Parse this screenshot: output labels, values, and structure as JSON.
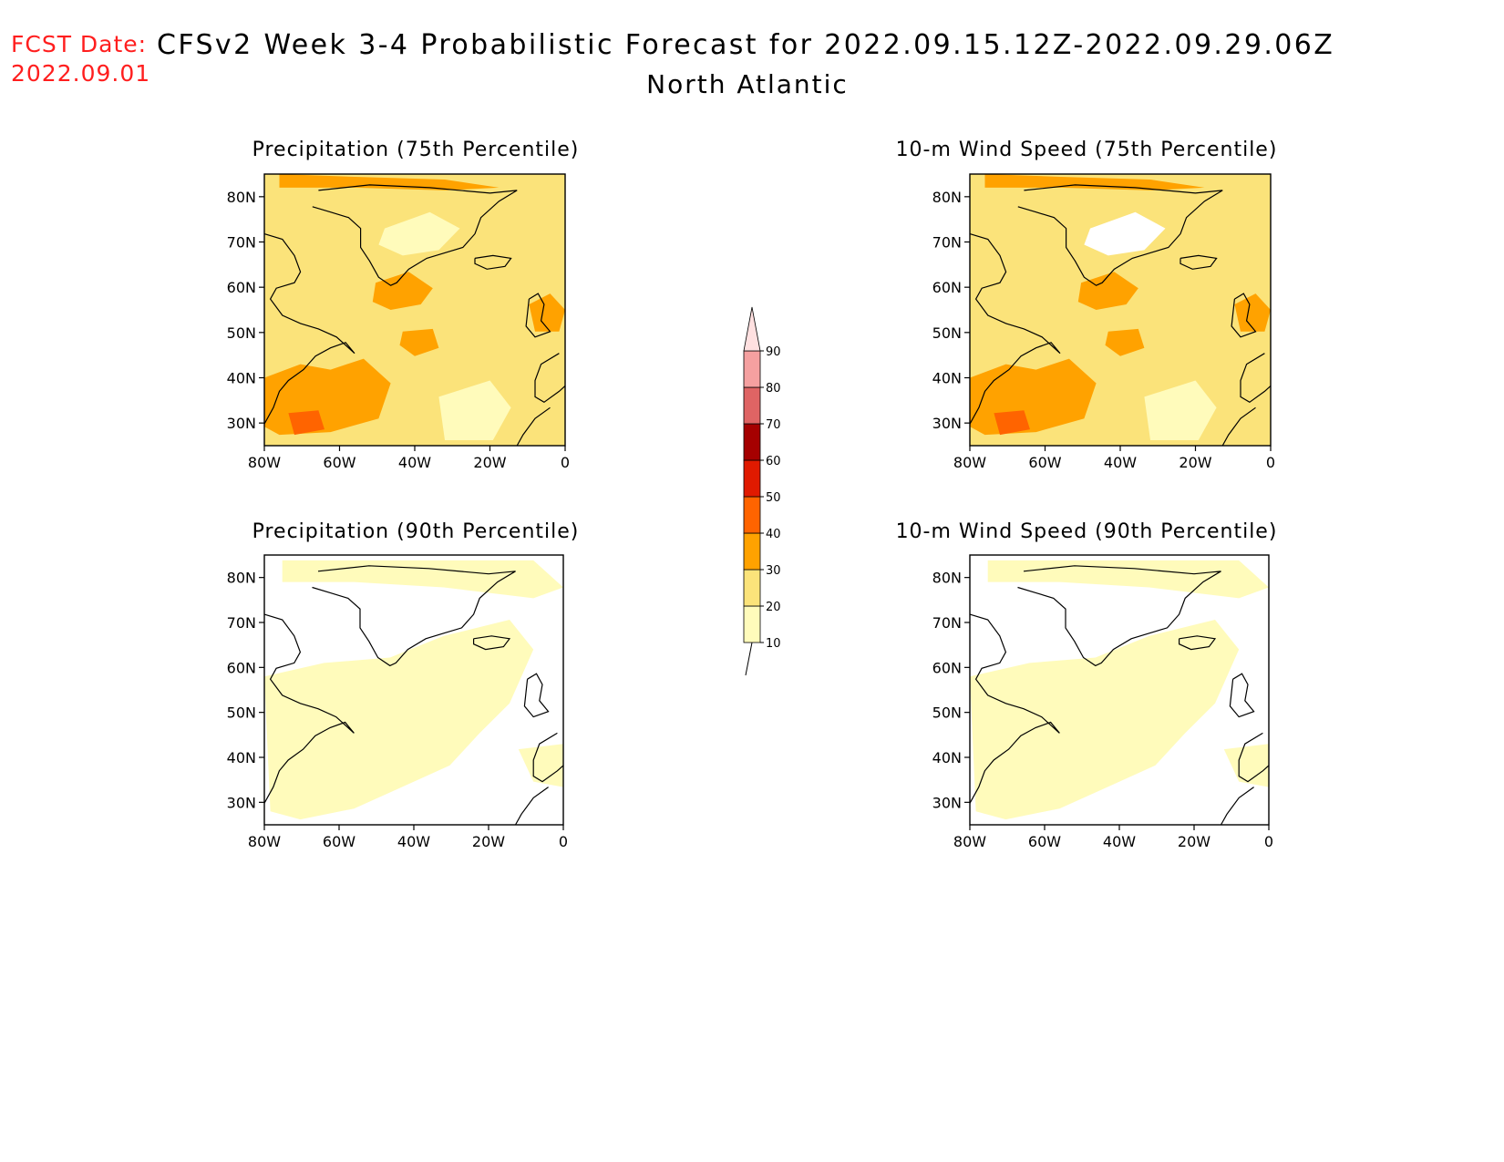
{
  "header": {
    "fcst_label": "FCST Date:",
    "fcst_date": "2022.09.01",
    "title": "CFSv2 Week 3-4 Probabilistic Forecast for 2022.09.15.12Z-2022.09.29.06Z",
    "region": "North Atlantic"
  },
  "panels": [
    {
      "id": "precip-75",
      "title": "Precipitation (75th Percentile)",
      "field_level": "mid"
    },
    {
      "id": "wind-75",
      "title": "10-m Wind Speed (75th Percentile)",
      "field_level": "mid"
    },
    {
      "id": "precip-90",
      "title": "Precipitation (90th Percentile)",
      "field_level": "low"
    },
    {
      "id": "wind-90",
      "title": "10-m Wind Speed (90th Percentile)",
      "field_level": "low"
    }
  ],
  "axes": {
    "lat_ticks": [
      "30N",
      "40N",
      "50N",
      "60N",
      "70N",
      "80N"
    ],
    "lat_values": [
      30,
      40,
      50,
      60,
      70,
      80
    ],
    "lon_ticks": [
      "80W",
      "60W",
      "40W",
      "20W",
      "0"
    ],
    "lon_values": [
      -80,
      -60,
      -40,
      -20,
      0
    ],
    "lat_range": [
      25,
      85
    ],
    "lon_range": [
      -80,
      0
    ]
  },
  "colorbar": {
    "levels": [
      "10",
      "20",
      "30",
      "40",
      "50",
      "60",
      "70",
      "80",
      "90"
    ],
    "colors": [
      "#fffbbb",
      "#fbe37a",
      "#ffa200",
      "#ff6400",
      "#e01a00",
      "#a50000",
      "#df6464",
      "#f5a0a0",
      "#ffe0e0"
    ]
  }
}
